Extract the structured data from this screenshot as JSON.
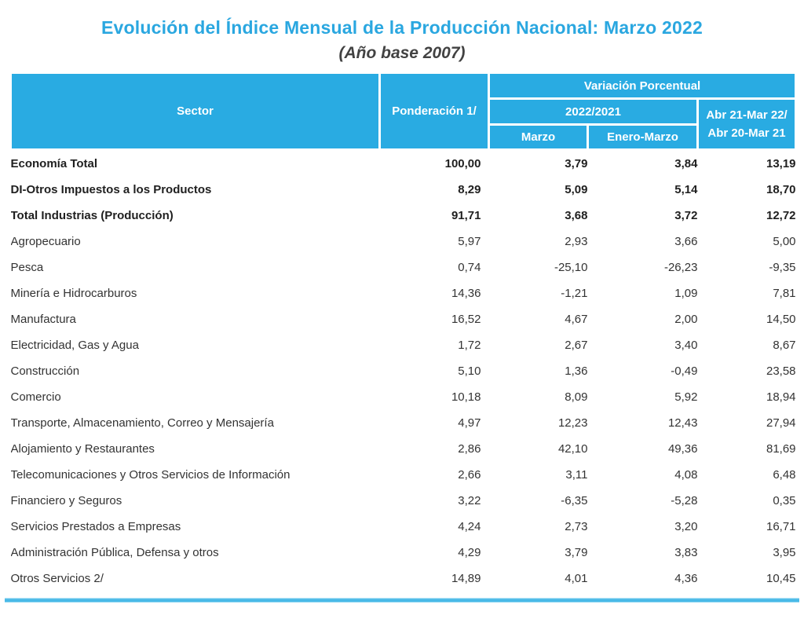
{
  "page": {
    "title": "Evolución del Índice Mensual de la Producción Nacional: Marzo 2022",
    "subtitle": "(Año base 2007)"
  },
  "colors": {
    "header_bg": "#29abe2",
    "title_text": "#2aa7e0",
    "bottom_rule": "#49b9e7"
  },
  "table": {
    "headers": {
      "sector": "Sector",
      "ponderacion": "Ponderación 1/",
      "variacion_group": "Variación Porcentual",
      "year_group": "2022/2021",
      "marzo": "Marzo",
      "enero_marzo": "Enero-Marzo",
      "annual_line1": "Abr 21-Mar 22/",
      "annual_line2": "Abr 20-Mar 21"
    },
    "rows": [
      {
        "sector": "Economía Total",
        "indent": 0,
        "bold": true,
        "values": [
          "100,00",
          "3,79",
          "3,84",
          "13,19"
        ]
      },
      {
        "sector": "DI-Otros Impuestos a los Productos",
        "indent": 1,
        "bold": true,
        "values": [
          "8,29",
          "5,09",
          "5,14",
          "18,70"
        ]
      },
      {
        "sector": "Total  Industrias (Producción)",
        "indent": 1,
        "bold": true,
        "values": [
          "91,71",
          "3,68",
          "3,72",
          "12,72"
        ]
      },
      {
        "sector": "Agropecuario",
        "indent": 2,
        "bold": false,
        "values": [
          "5,97",
          "2,93",
          "3,66",
          "5,00"
        ]
      },
      {
        "sector": "Pesca",
        "indent": 2,
        "bold": false,
        "values": [
          "0,74",
          "-25,10",
          "-26,23",
          "-9,35"
        ]
      },
      {
        "sector": "Minería e Hidrocarburos",
        "indent": 2,
        "bold": false,
        "values": [
          "14,36",
          "-1,21",
          "1,09",
          "7,81"
        ]
      },
      {
        "sector": "Manufactura",
        "indent": 2,
        "bold": false,
        "values": [
          "16,52",
          "4,67",
          "2,00",
          "14,50"
        ]
      },
      {
        "sector": "Electricidad, Gas y Agua",
        "indent": 2,
        "bold": false,
        "values": [
          "1,72",
          "2,67",
          "3,40",
          "8,67"
        ]
      },
      {
        "sector": "Construcción",
        "indent": 2,
        "bold": false,
        "values": [
          "5,10",
          "1,36",
          "-0,49",
          "23,58"
        ]
      },
      {
        "sector": "Comercio",
        "indent": 2,
        "bold": false,
        "values": [
          "10,18",
          "8,09",
          "5,92",
          "18,94"
        ]
      },
      {
        "sector": "Transporte, Almacenamiento, Correo y Mensajería",
        "indent": 2,
        "bold": false,
        "values": [
          "4,97",
          "12,23",
          "12,43",
          "27,94"
        ]
      },
      {
        "sector": "Alojamiento y Restaurantes",
        "indent": 2,
        "bold": false,
        "values": [
          "2,86",
          "42,10",
          "49,36",
          "81,69"
        ]
      },
      {
        "sector": "Telecomunicaciones y Otros Servicios de Información",
        "indent": 2,
        "bold": false,
        "values": [
          "2,66",
          "3,11",
          "4,08",
          "6,48"
        ]
      },
      {
        "sector": "Financiero y Seguros",
        "indent": 2,
        "bold": false,
        "values": [
          "3,22",
          "-6,35",
          "-5,28",
          "0,35"
        ]
      },
      {
        "sector": "Servicios Prestados a Empresas",
        "indent": 2,
        "bold": false,
        "values": [
          "4,24",
          "2,73",
          "3,20",
          "16,71"
        ]
      },
      {
        "sector": "Administración Pública, Defensa y otros",
        "indent": 2,
        "bold": false,
        "values": [
          "4,29",
          "3,79",
          "3,83",
          "3,95"
        ]
      },
      {
        "sector": "Otros Servicios 2/",
        "indent": 2,
        "bold": false,
        "values": [
          "14,89",
          "4,01",
          "4,36",
          "10,45"
        ]
      }
    ]
  }
}
